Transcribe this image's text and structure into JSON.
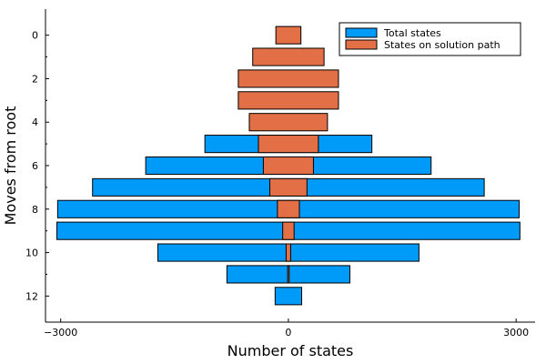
{
  "chart_data": {
    "type": "bar",
    "orientation": "horizontal",
    "xlabel": "Number of states",
    "ylabel": "Moves from root",
    "xlim": [
      -3200,
      3250
    ],
    "ylim": [
      -1.2,
      13.2
    ],
    "xticks": [
      -3000,
      0,
      3000
    ],
    "xtick_labels": [
      "−3000",
      "0",
      "3000"
    ],
    "yticks": [
      0,
      2,
      4,
      6,
      8,
      10,
      12
    ],
    "yticks_minor": [
      1,
      3,
      5,
      7,
      9,
      11
    ],
    "ytick_labels": [
      "0",
      "2",
      "4",
      "6",
      "8",
      "10",
      "12"
    ],
    "moves": [
      0,
      1,
      2,
      3,
      4,
      5,
      6,
      7,
      8,
      9,
      10,
      11,
      12
    ],
    "bar_height": 0.8,
    "legend_position": "top-right",
    "grid": false,
    "series": [
      {
        "name": "Total states",
        "color": "#009af9",
        "values": [
          0,
          0,
          0,
          0,
          0,
          1100,
          1880,
          2580,
          3040,
          3050,
          1720,
          810,
          175
        ]
      },
      {
        "name": "States on solution path",
        "color": "#e26f46",
        "values": [
          165,
          470,
          660,
          660,
          515,
          395,
          330,
          245,
          145,
          75,
          30,
          10,
          0
        ]
      }
    ]
  }
}
